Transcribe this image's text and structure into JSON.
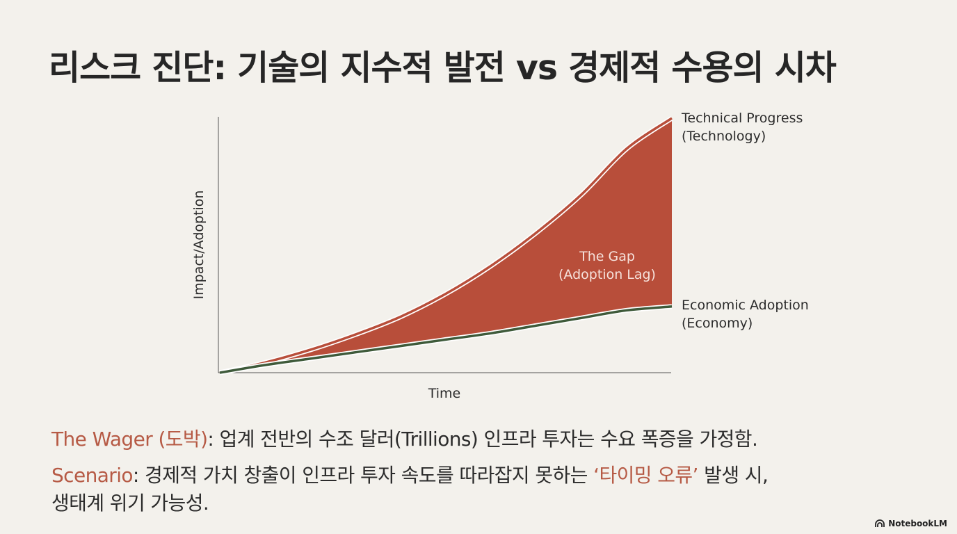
{
  "title": "리스크 진단: 기술의 지수적 발전 vs 경제적 수용의 시차",
  "chart_data": {
    "type": "area",
    "xlabel": "Time",
    "ylabel": "Impact/Adoption",
    "grid": false,
    "series": [
      {
        "name": "Technical Progress (Technology)",
        "label_lines": [
          "Technical Progress",
          "(Technology)"
        ],
        "color": "#b84e3a",
        "x": [
          0,
          1,
          2,
          3,
          4,
          5,
          6,
          7,
          8,
          9,
          10
        ],
        "values": [
          0,
          4,
          9,
          15,
          22,
          31,
          42,
          55,
          70,
          88,
          100
        ]
      },
      {
        "name": "Economic Adoption (Economy)",
        "label_lines": [
          "Economic Adoption",
          "(Economy)"
        ],
        "color": "#3e5a3a",
        "x": [
          0,
          1,
          2,
          3,
          4,
          5,
          6,
          7,
          8,
          9,
          10
        ],
        "values": [
          0,
          3,
          5.5,
          8,
          10.5,
          13,
          15.5,
          18.5,
          21.5,
          24.5,
          26
        ]
      }
    ],
    "annotations": [
      {
        "label_lines": [
          "The Gap",
          "(Adoption Lag)"
        ],
        "fill_color": "#b84e3a"
      }
    ]
  },
  "body": {
    "wager_label": "The Wager (도박)",
    "wager_text": ": 업계 전반의 수조 달러(Trillions) 인프라 투자는 수요 폭증을 가정함.",
    "scenario_label": "Scenario",
    "scenario_text_1": ": 경제적 가치 창출이 인프라 투자 속도를 따라잡지 못하는 ",
    "scenario_highlight": "‘타이밍 오류’",
    "scenario_text_2": " 발생 시,",
    "scenario_text_3": "생태계 위기 가능성."
  },
  "brand": "NotebookLM",
  "colors": {
    "accent": "#b65a45",
    "background": "#f3f1ec"
  }
}
